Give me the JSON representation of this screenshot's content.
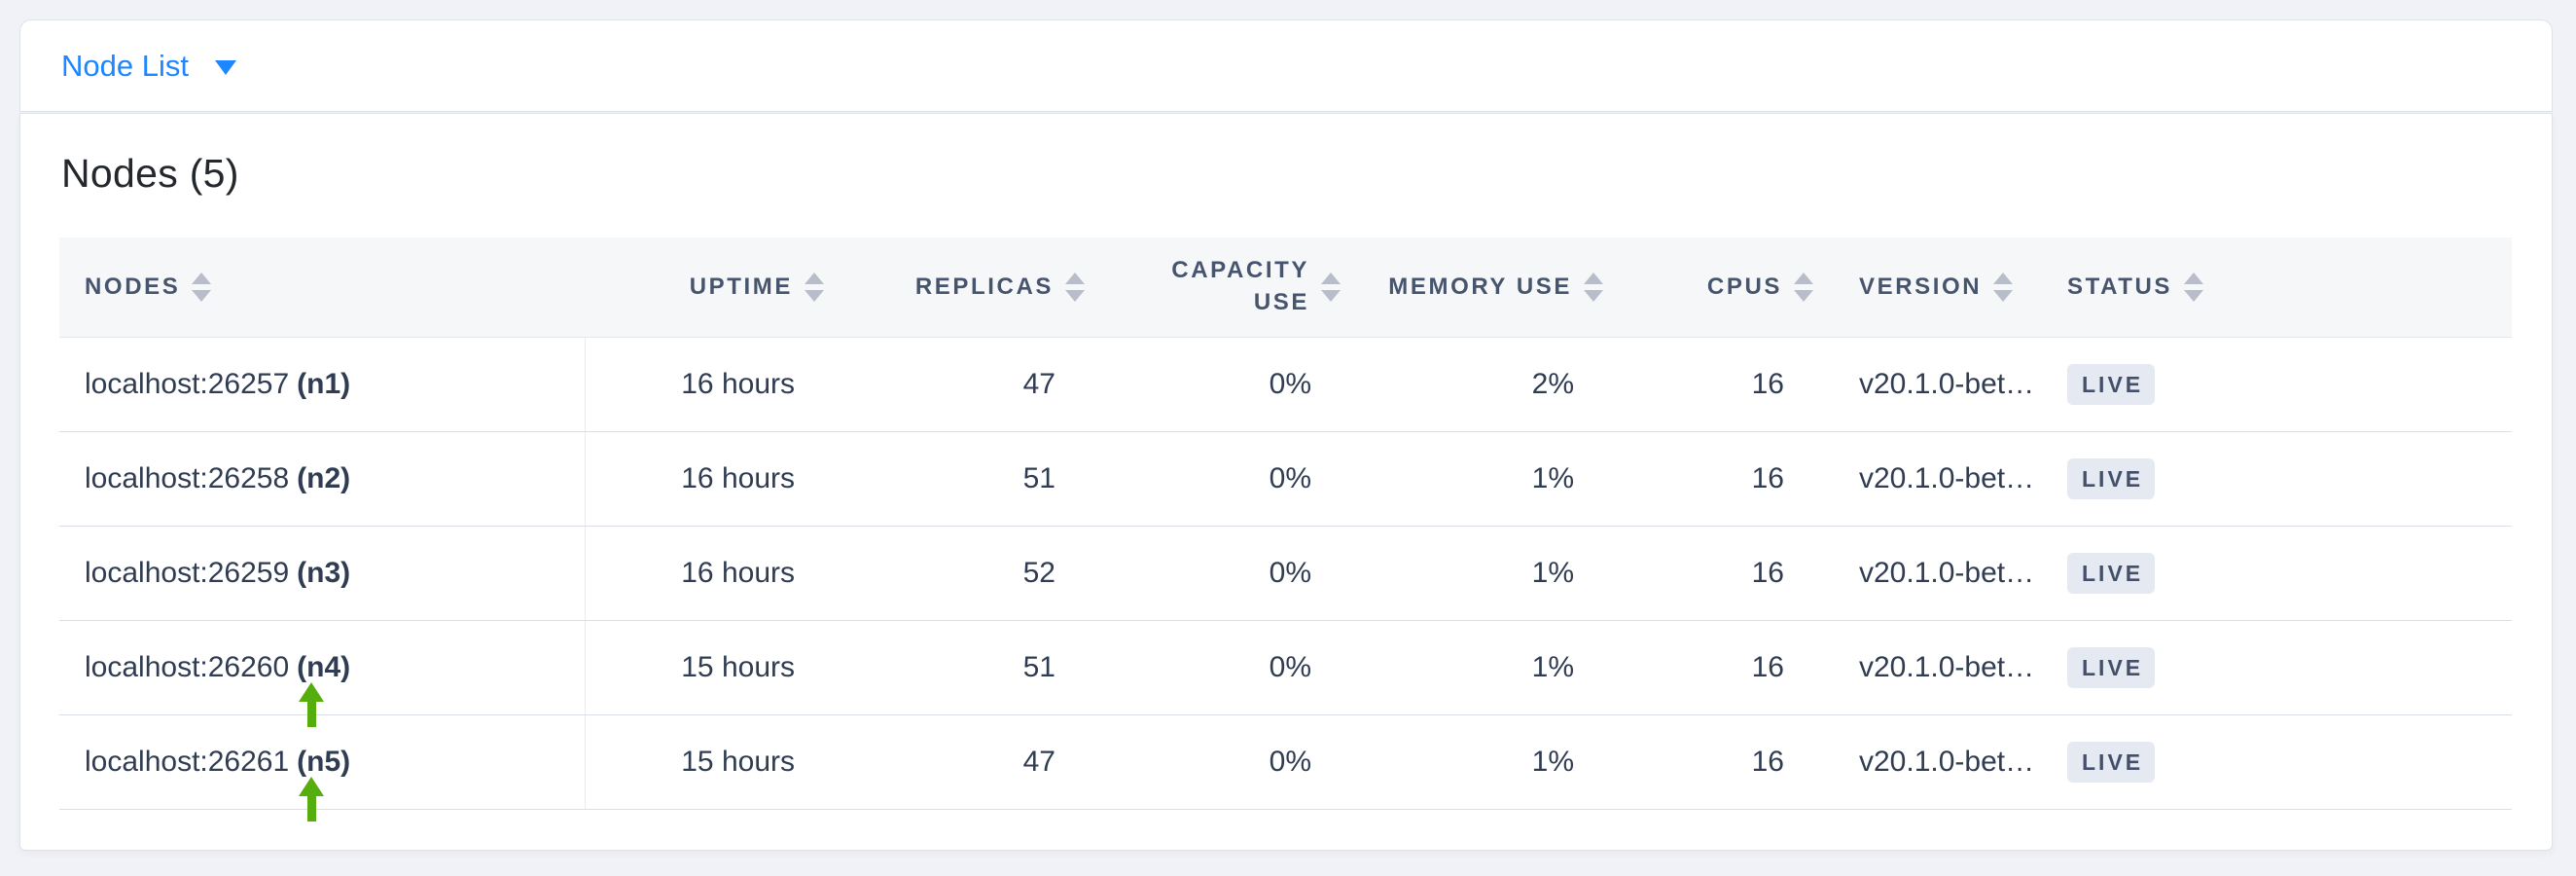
{
  "colors": {
    "accent_blue": "#1d87ff",
    "arrow_green": "#55ad0e",
    "badge_bg": "#e5eaf2",
    "header_text": "#47546e",
    "cell_text": "#303c52",
    "page_bg": "#f0f2f7"
  },
  "topbar": {
    "dropdown_label": "Node List",
    "caret_icon": "caret-down"
  },
  "main": {
    "heading": "Nodes (5)",
    "table": {
      "columns": [
        {
          "key": "nodes",
          "label": "NODES",
          "align": "left",
          "sort_icon": "sort-both"
        },
        {
          "key": "uptime",
          "label": "UPTIME",
          "align": "right",
          "sort_icon": "sort-both"
        },
        {
          "key": "replicas",
          "label": "REPLICAS",
          "align": "right",
          "sort_icon": "sort-both"
        },
        {
          "key": "capacity_use",
          "label": "CAPACITY USE",
          "align": "right",
          "sort_icon": "sort-both"
        },
        {
          "key": "memory_use",
          "label": "MEMORY USE",
          "align": "right",
          "sort_icon": "sort-both"
        },
        {
          "key": "cpus",
          "label": "CPUS",
          "align": "right",
          "sort_icon": "sort-both"
        },
        {
          "key": "version",
          "label": "VERSION",
          "align": "left",
          "sort_icon": "sort-both"
        },
        {
          "key": "status",
          "label": "STATUS",
          "align": "left",
          "sort_icon": "sort-both"
        }
      ],
      "rows": [
        {
          "node": "localhost:26257",
          "id": "(n1)",
          "uptime": "16 hours",
          "replicas": "47",
          "capacity_use": "0%",
          "memory_use": "2%",
          "cpus": "16",
          "version": "v20.1.0-bet…",
          "status": "LIVE",
          "arrow": false
        },
        {
          "node": "localhost:26258",
          "id": "(n2)",
          "uptime": "16 hours",
          "replicas": "51",
          "capacity_use": "0%",
          "memory_use": "1%",
          "cpus": "16",
          "version": "v20.1.0-bet…",
          "status": "LIVE",
          "arrow": false
        },
        {
          "node": "localhost:26259",
          "id": "(n3)",
          "uptime": "16 hours",
          "replicas": "52",
          "capacity_use": "0%",
          "memory_use": "1%",
          "cpus": "16",
          "version": "v20.1.0-bet…",
          "status": "LIVE",
          "arrow": false
        },
        {
          "node": "localhost:26260",
          "id": "(n4)",
          "uptime": "15 hours",
          "replicas": "51",
          "capacity_use": "0%",
          "memory_use": "1%",
          "cpus": "16",
          "version": "v20.1.0-bet…",
          "status": "LIVE",
          "arrow": true
        },
        {
          "node": "localhost:26261",
          "id": "(n5)",
          "uptime": "15 hours",
          "replicas": "47",
          "capacity_use": "0%",
          "memory_use": "1%",
          "cpus": "16",
          "version": "v20.1.0-bet…",
          "status": "LIVE",
          "arrow": true
        }
      ]
    }
  }
}
